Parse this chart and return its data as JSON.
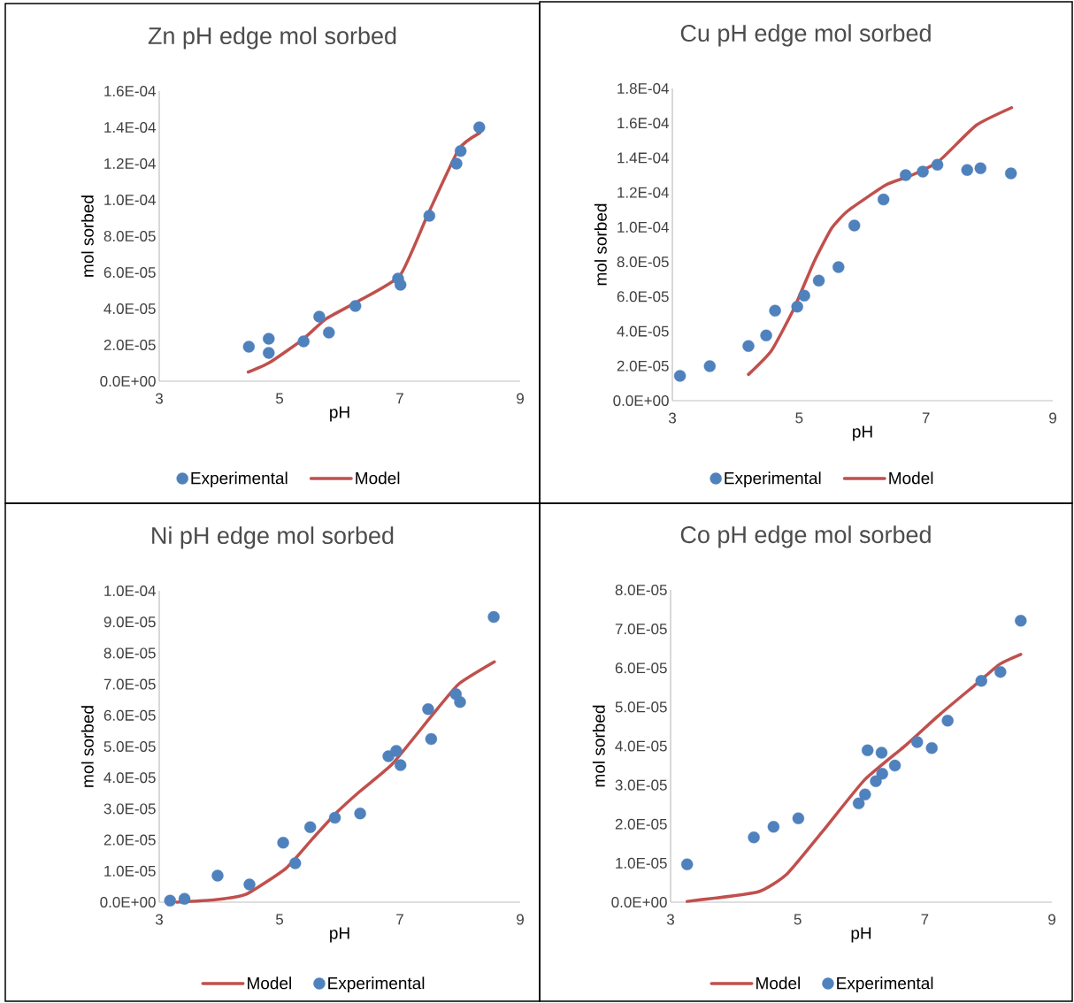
{
  "chart_data": [
    {
      "type": "scatter",
      "title": "Zn pH edge mol sorbed",
      "xlabel": "pH",
      "ylabel": "mol sorbed",
      "xlim": [
        3,
        9
      ],
      "xticks": [
        3,
        5,
        7,
        9
      ],
      "ylim": [
        0,
        0.00016
      ],
      "yticks": [
        {
          "value": 0,
          "label": "0.0E+00"
        },
        {
          "value": 2e-05,
          "label": "2.0E-05"
        },
        {
          "value": 4e-05,
          "label": "4.0E-05"
        },
        {
          "value": 6e-05,
          "label": "6.0E-05"
        },
        {
          "value": 8e-05,
          "label": "8.0E-05"
        },
        {
          "value": 0.0001,
          "label": "1.0E-04"
        },
        {
          "value": 0.00012,
          "label": "1.2E-04"
        },
        {
          "value": 0.00014,
          "label": "1.4E-04"
        },
        {
          "value": 0.00016,
          "label": "1.6E-04"
        }
      ],
      "legend": "bottom",
      "grid": false,
      "series": [
        {
          "name": "Experimental",
          "marker": "circle",
          "color": "#4f81bd",
          "x": [
            4.49,
            4.82,
            4.82,
            5.4,
            5.66,
            5.82,
            6.26,
            6.97,
            7.01,
            7.49,
            7.94,
            8.01,
            8.32
          ],
          "values": [
            1.9e-05,
            2.34e-05,
            1.56e-05,
            2.2e-05,
            3.56e-05,
            2.68e-05,
            4.15e-05,
            5.66e-05,
            5.32e-05,
            9.12e-05,
            0.00012,
            0.000127,
            0.00014
          ]
        },
        {
          "name": "Model",
          "type": "line",
          "marker": "none",
          "color": "#c0504d",
          "x": [
            4.48,
            4.83,
            5.38,
            5.77,
            6.28,
            7.0,
            7.46,
            7.98,
            8.33
          ],
          "values": [
            5e-06,
            1.02e-05,
            2.29e-05,
            3.43e-05,
            4.36e-05,
            5.82e-05,
            9.16e-05,
            0.000128,
            0.000137
          ]
        }
      ]
    },
    {
      "type": "scatter",
      "title": "Cu pH edge mol sorbed",
      "xlabel": "pH",
      "ylabel": "mol sorbed",
      "xlim": [
        3,
        9
      ],
      "xticks": [
        3,
        5,
        7,
        9
      ],
      "ylim": [
        0,
        0.00018
      ],
      "yticks": [
        {
          "value": 0,
          "label": "0.0E+00"
        },
        {
          "value": 2e-05,
          "label": "2.0E-05"
        },
        {
          "value": 4e-05,
          "label": "4.0E-05"
        },
        {
          "value": 6e-05,
          "label": "6.0E-05"
        },
        {
          "value": 8e-05,
          "label": "8.0E-05"
        },
        {
          "value": 0.0001,
          "label": "1.0E-04"
        },
        {
          "value": 0.00012,
          "label": "1.2E-04"
        },
        {
          "value": 0.00014,
          "label": "1.4E-04"
        },
        {
          "value": 0.00016,
          "label": "1.6E-04"
        },
        {
          "value": 0.00018,
          "label": "1.8E-04"
        }
      ],
      "legend": "bottom",
      "grid": false,
      "series": [
        {
          "name": "Experimental",
          "marker": "circle",
          "color": "#4f81bd",
          "x": [
            3.12,
            3.59,
            4.2,
            4.48,
            4.62,
            4.97,
            5.08,
            5.31,
            5.62,
            5.87,
            6.33,
            6.68,
            6.95,
            7.18,
            7.65,
            7.86,
            8.34
          ],
          "values": [
            1.43e-05,
            1.99e-05,
            3.15e-05,
            3.76e-05,
            5.19e-05,
            5.42e-05,
            6.05e-05,
            6.92e-05,
            7.7e-05,
            0.000101,
            0.000116,
            0.00013,
            0.000132,
            0.000136,
            0.000133,
            0.000134,
            0.000131
          ]
        },
        {
          "name": "Model",
          "type": "line",
          "marker": "none",
          "color": "#c0504d",
          "x": [
            4.2,
            4.56,
            4.91,
            5.23,
            5.51,
            5.77,
            6.37,
            6.77,
            7.21,
            7.79,
            8.35
          ],
          "values": [
            1.51e-05,
            2.87e-05,
            5.25e-05,
            7.97e-05,
            9.93e-05,
            0.0001095,
            0.0001244,
            0.0001299,
            0.0001383,
            0.0001587,
            0.0001689
          ]
        }
      ]
    },
    {
      "type": "scatter",
      "title": "Ni pH edge mol sorbed",
      "xlabel": "pH",
      "ylabel": "mol sorbed",
      "xlim": [
        3,
        9
      ],
      "xticks": [
        3,
        5,
        7,
        9
      ],
      "ylim": [
        0,
        0.0001
      ],
      "yticks": [
        {
          "value": 0,
          "label": "0.0E+00"
        },
        {
          "value": 1e-05,
          "label": "1.0E-05"
        },
        {
          "value": 2e-05,
          "label": "2.0E-05"
        },
        {
          "value": 3e-05,
          "label": "3.0E-05"
        },
        {
          "value": 4e-05,
          "label": "4.0E-05"
        },
        {
          "value": 5e-05,
          "label": "5.0E-05"
        },
        {
          "value": 6e-05,
          "label": "6.0E-05"
        },
        {
          "value": 7e-05,
          "label": "7.0E-05"
        },
        {
          "value": 8e-05,
          "label": "8.0E-05"
        },
        {
          "value": 9e-05,
          "label": "9.0E-05"
        },
        {
          "value": 0.0001,
          "label": "1.0E-04"
        }
      ],
      "legend": "bottom",
      "grid": false,
      "series": [
        {
          "name": "Model",
          "type": "line",
          "marker": "none",
          "color": "#c0504d",
          "x": [
            3.29,
            3.93,
            4.45,
            5.11,
            5.55,
            5.94,
            6.33,
            6.87,
            7.53,
            7.98,
            8.57
          ],
          "values": [
            0,
            7.7e-07,
            2.6e-06,
            1.09e-05,
            2.04e-05,
            2.86e-05,
            3.55e-05,
            4.43e-05,
            5.99e-05,
            7.01e-05,
            7.72e-05
          ]
        },
        {
          "name": "Experimental",
          "marker": "circle",
          "color": "#4f81bd",
          "x": [
            3.18,
            3.42,
            3.97,
            4.5,
            5.06,
            5.26,
            5.51,
            5.92,
            6.34,
            6.81,
            6.94,
            7.01,
            7.47,
            7.52,
            7.93,
            8.0,
            8.56
          ],
          "values": [
            5e-07,
            1.1e-06,
            8.5e-06,
            5.7e-06,
            1.91e-05,
            1.25e-05,
            2.41e-05,
            2.71e-05,
            2.85e-05,
            4.69e-05,
            4.86e-05,
            4.4e-05,
            6.2e-05,
            5.24e-05,
            6.68e-05,
            6.43e-05,
            9.16e-05
          ]
        }
      ]
    },
    {
      "type": "scatter",
      "title": "Co pH edge mol sorbed",
      "xlabel": "pH",
      "ylabel": "mol sorbed",
      "xlim": [
        3,
        9
      ],
      "xticks": [
        3,
        5,
        7,
        9
      ],
      "ylim": [
        0,
        8e-05
      ],
      "yticks": [
        {
          "value": 0,
          "label": "0.0E+00"
        },
        {
          "value": 1e-05,
          "label": "1.0E-05"
        },
        {
          "value": 2e-05,
          "label": "2.0E-05"
        },
        {
          "value": 3e-05,
          "label": "3.0E-05"
        },
        {
          "value": 4e-05,
          "label": "4.0E-05"
        },
        {
          "value": 5e-05,
          "label": "5.0E-05"
        },
        {
          "value": 6e-05,
          "label": "6.0E-05"
        },
        {
          "value": 7e-05,
          "label": "7.0E-05"
        },
        {
          "value": 8e-05,
          "label": "8.0E-05"
        }
      ],
      "legend": "bottom",
      "grid": false,
      "series": [
        {
          "name": "Model",
          "type": "line",
          "marker": "none",
          "color": "#c0504d",
          "x": [
            3.26,
            4.37,
            4.83,
            5.39,
            6.05,
            6.7,
            7.25,
            7.81,
            8.18,
            8.51
          ],
          "values": [
            2e-07,
            2.6e-06,
            7.2e-06,
            1.81e-05,
            3.13e-05,
            4.02e-05,
            4.83e-05,
            5.59e-05,
            6.1e-05,
            6.35e-05
          ]
        },
        {
          "name": "Experimental",
          "marker": "circle",
          "color": "#4f81bd",
          "x": [
            3.26,
            4.31,
            4.62,
            5.01,
            5.96,
            6.06,
            6.1,
            6.23,
            6.32,
            6.33,
            6.53,
            6.88,
            7.11,
            7.36,
            7.89,
            8.19,
            8.51
          ],
          "values": [
            9.7e-06,
            1.66e-05,
            1.93e-05,
            2.15e-05,
            2.53e-05,
            2.76e-05,
            3.89e-05,
            3.1e-05,
            3.83e-05,
            3.29e-05,
            3.5e-05,
            4.1e-05,
            3.95e-05,
            4.65e-05,
            5.67e-05,
            5.9e-05,
            7.21e-05
          ]
        }
      ]
    }
  ]
}
